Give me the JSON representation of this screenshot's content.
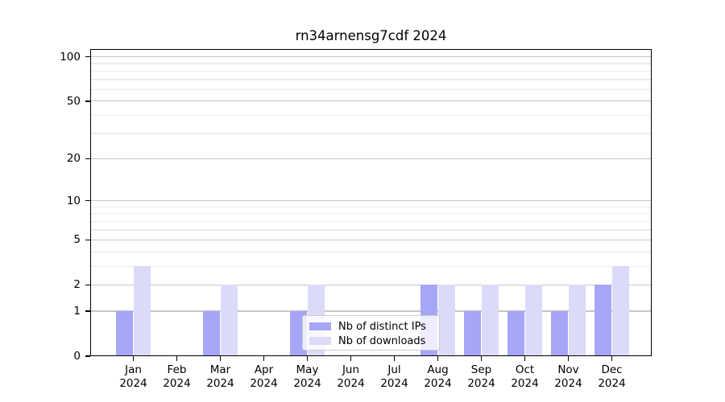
{
  "chart_data": {
    "type": "bar",
    "title": "rn34arnensg7cdf 2024",
    "categories": [
      "Jan",
      "Feb",
      "Mar",
      "Apr",
      "May",
      "Jun",
      "Jul",
      "Aug",
      "Sep",
      "Oct",
      "Nov",
      "Dec"
    ],
    "year": "2024",
    "series": [
      {
        "name": "Nb of distinct IPs",
        "color": "#a6a6f7",
        "values": [
          1,
          0,
          1,
          0,
          1,
          0,
          0,
          2,
          1,
          1,
          1,
          2
        ]
      },
      {
        "name": "Nb of downloads",
        "color": "#dbdbf9",
        "values": [
          3,
          0,
          2,
          0,
          2,
          0,
          0,
          2,
          2,
          2,
          2,
          3
        ]
      }
    ],
    "xlabel": "",
    "ylabel": "",
    "yscale": "log1p",
    "ylim": [
      0,
      112.8
    ],
    "yticks_major": [
      0,
      1,
      2,
      5,
      10,
      20,
      50,
      100
    ],
    "yticks_minor": [
      3,
      4,
      6,
      7,
      8,
      9,
      30,
      40,
      60,
      70,
      80,
      90
    ],
    "grid": "horizontal",
    "legend_position": "lower-center"
  },
  "colors": {
    "distinct_ips_bar": "#a6a6f7",
    "downloads_bar": "#dbdbf9",
    "grid_major": "#c6c6c6",
    "grid_minor": "#ececec",
    "axis_line": "#000000",
    "legend_border": "#cccccc",
    "background": "#ffffff"
  }
}
